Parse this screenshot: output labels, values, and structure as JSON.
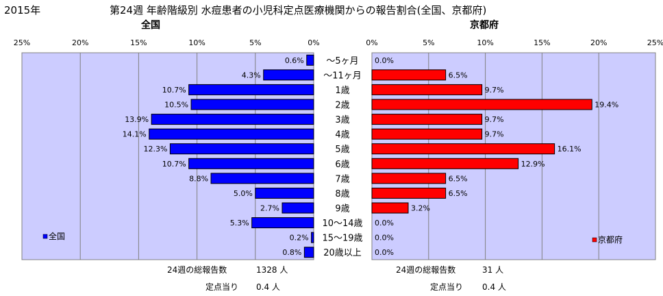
{
  "header": {
    "year": "2015年",
    "title": "第24週 年齢階級別 水痘患者の小児科定点医療機関からの報告割合(全国、京都府)"
  },
  "chart_data": [
    {
      "type": "bar",
      "title": "全国",
      "orientation": "horizontal",
      "direction": "reversed",
      "categories": [
        "～5ヶ月",
        "～11ヶ月",
        "1歳",
        "2歳",
        "3歳",
        "4歳",
        "5歳",
        "6歳",
        "7歳",
        "8歳",
        "9歳",
        "10～14歳",
        "15～19歳",
        "20歳以上"
      ],
      "series": [
        {
          "name": "全国",
          "color": "#0000ff",
          "values": [
            0.6,
            4.3,
            10.7,
            10.5,
            13.9,
            14.1,
            12.3,
            10.7,
            8.8,
            5.0,
            2.7,
            5.3,
            0.2,
            0.8
          ],
          "labels": [
            "0.6%",
            "4.3%",
            "10.7%",
            "10.5%",
            "13.9%",
            "14.1%",
            "12.3%",
            "10.7%",
            "8.8%",
            "5.0%",
            "2.7%",
            "5.3%",
            "0.2%",
            "0.8%"
          ]
        }
      ],
      "xlim": [
        0,
        25
      ],
      "ticks": [
        "25%",
        "20%",
        "15%",
        "10%",
        "5%",
        "0%"
      ],
      "grid": true,
      "legend": "bottom-left",
      "legend_label": "全国",
      "background": "#ccccff"
    },
    {
      "type": "bar",
      "title": "京都府",
      "orientation": "horizontal",
      "categories": [
        "～5ヶ月",
        "～11ヶ月",
        "1歳",
        "2歳",
        "3歳",
        "4歳",
        "5歳",
        "6歳",
        "7歳",
        "8歳",
        "9歳",
        "10～14歳",
        "15～19歳",
        "20歳以上"
      ],
      "series": [
        {
          "name": "京都府",
          "color": "#ff0000",
          "values": [
            0.0,
            6.5,
            9.7,
            19.4,
            9.7,
            9.7,
            16.1,
            12.9,
            6.5,
            6.5,
            3.2,
            0.0,
            0.0,
            0.0
          ],
          "labels": [
            "0.0%",
            "6.5%",
            "9.7%",
            "19.4%",
            "9.7%",
            "9.7%",
            "16.1%",
            "12.9%",
            "6.5%",
            "6.5%",
            "3.2%",
            "0.0%",
            "0.0%",
            "0.0%"
          ]
        }
      ],
      "xlim": [
        0,
        25
      ],
      "ticks": [
        "0%",
        "5%",
        "10%",
        "15%",
        "20%",
        "25%"
      ],
      "grid": true,
      "legend": "bottom-right",
      "legend_label": "京都府",
      "background": "#ccccff"
    }
  ],
  "summary": {
    "national": {
      "total_label": "24週の総報告数",
      "total_value": "1328 人",
      "per_label": "定点当り",
      "per_value": "0.4 人"
    },
    "kyoto": {
      "total_label": "24週の総報告数",
      "total_value": "31 人",
      "per_label": "定点当り",
      "per_value": "0.4 人"
    }
  }
}
